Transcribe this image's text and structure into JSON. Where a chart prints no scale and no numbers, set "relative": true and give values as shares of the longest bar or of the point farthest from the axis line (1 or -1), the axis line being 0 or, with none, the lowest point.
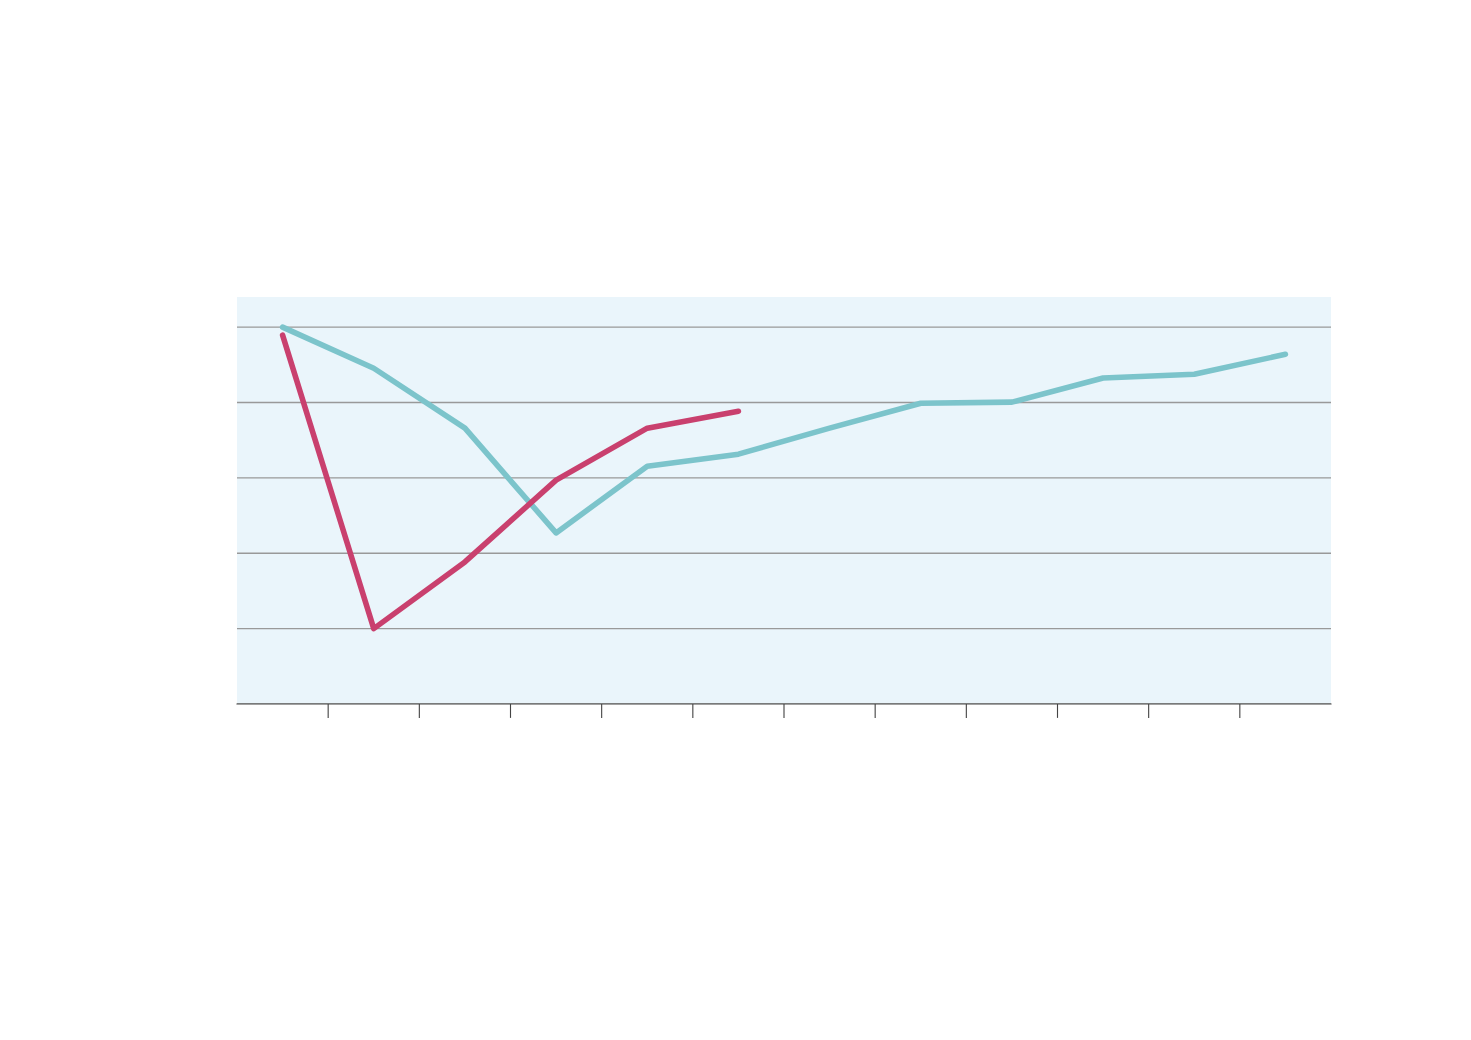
{
  "chart_data": {
    "type": "line",
    "relative": true,
    "categories": [
      null,
      null,
      null,
      null,
      null,
      null,
      null,
      null,
      null,
      null,
      null,
      null
    ],
    "grid": "y",
    "line_style": "solid",
    "marker": "none",
    "series": [
      {
        "color": "#7cc4cb",
        "values": [
          1,
          0.891,
          0.732,
          0.454,
          0.631,
          0.663,
          0.732,
          0.798,
          0.801,
          0.865,
          0.875,
          0.928
        ]
      },
      {
        "color": "#c9406e",
        "values": [
          0.979,
          0.2,
          0.377,
          0.594,
          0.732,
          0.777,
          null,
          null,
          null,
          null,
          null,
          null
        ]
      }
    ]
  }
}
